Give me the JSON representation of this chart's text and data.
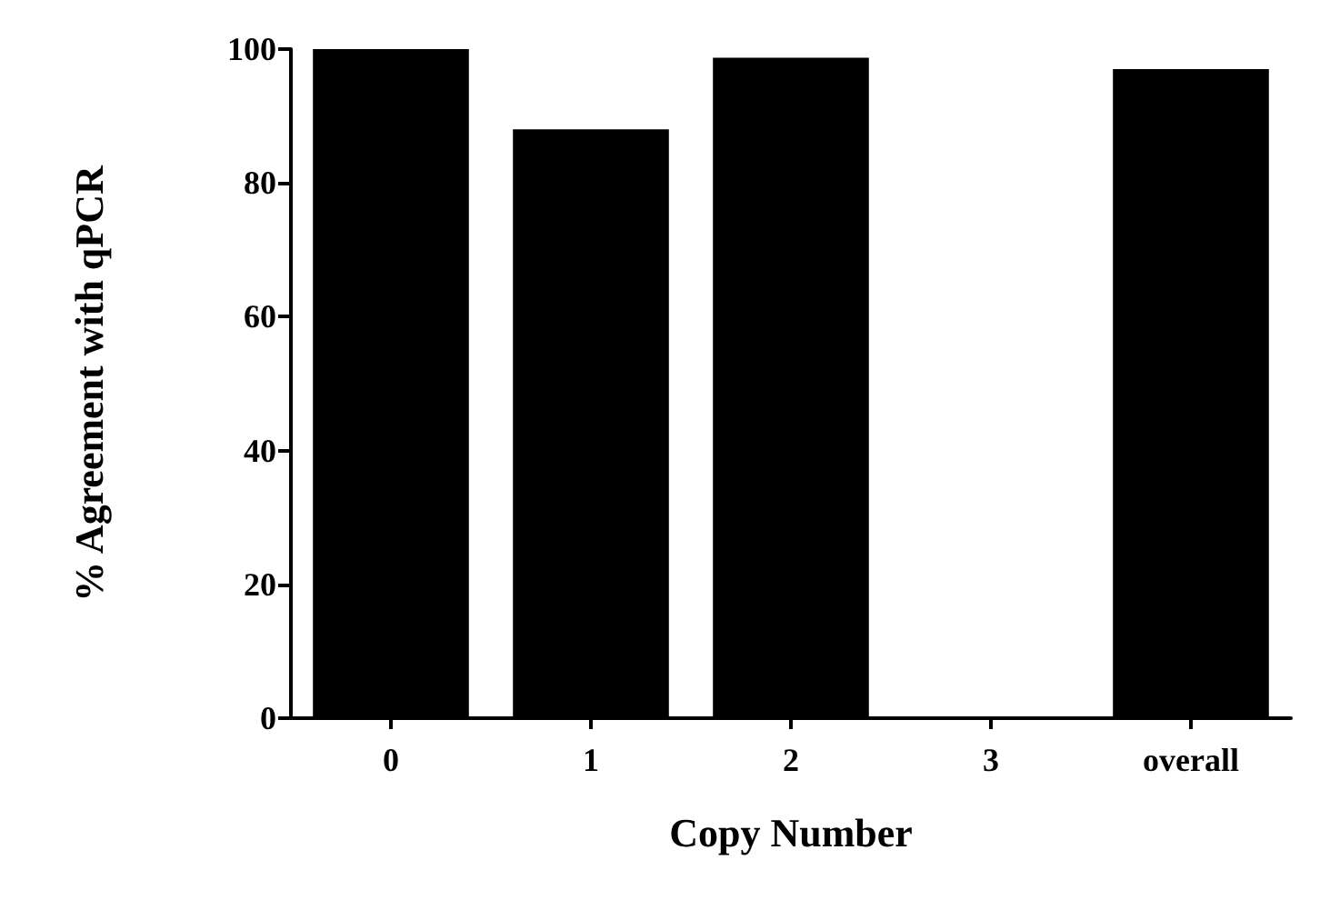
{
  "chart_data": {
    "type": "bar",
    "xlabel": "Copy Number",
    "ylabel": "% Agreement with qPCR",
    "categories": [
      "0",
      "1",
      "2",
      "3",
      "overall"
    ],
    "values": [
      100,
      88,
      98.7,
      0,
      97
    ],
    "color": "#000000",
    "ylim": [
      0,
      100
    ],
    "yticks": [
      0,
      20,
      40,
      60,
      80,
      100
    ],
    "grid": false
  }
}
